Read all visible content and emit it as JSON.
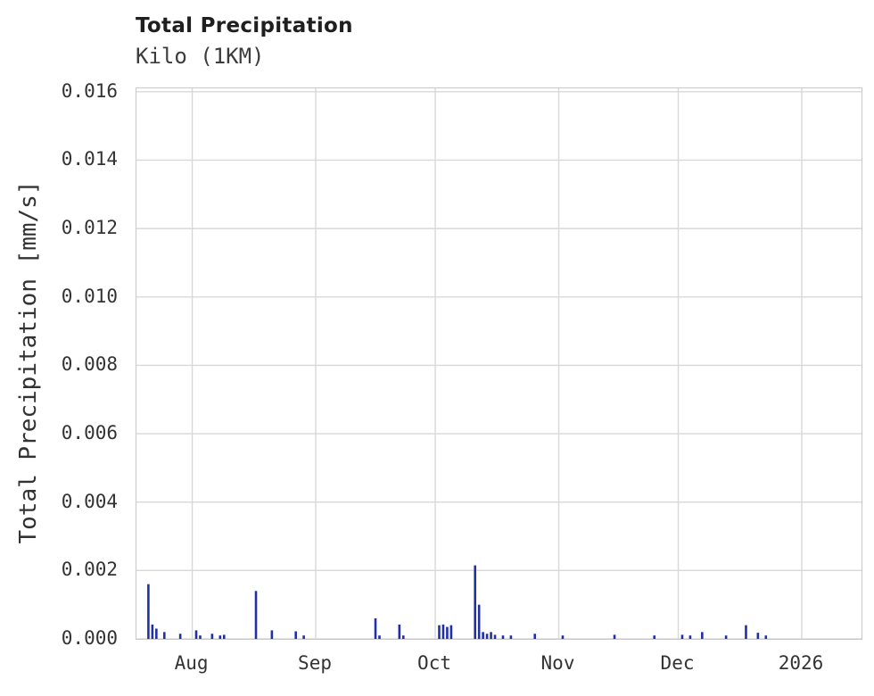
{
  "chart": {
    "title": "Total Precipitation",
    "subtitle": "Kilo (1KM)",
    "ylabel": "Total Precipitation [mm/s]"
  },
  "chart_data": {
    "type": "bar",
    "title": "Total Precipitation",
    "subtitle": "Kilo (1KM)",
    "xlabel": "",
    "ylabel": "Total Precipitation [mm/s]",
    "grid": true,
    "legend": false,
    "bar_color": "#2230a8",
    "grid_color": "#d8d8d8",
    "x_domain": [
      "2025-07-18",
      "2026-01-16"
    ],
    "ylim": [
      0,
      0.0161
    ],
    "y_ticks": [
      0,
      0.002,
      0.004,
      0.006,
      0.008,
      0.01,
      0.012,
      0.014,
      0.016
    ],
    "x_ticks": [
      {
        "label": "Aug",
        "date": "2025-08-01"
      },
      {
        "label": "Sep",
        "date": "2025-09-01"
      },
      {
        "label": "Oct",
        "date": "2025-10-01"
      },
      {
        "label": "Nov",
        "date": "2025-11-01"
      },
      {
        "label": "Dec",
        "date": "2025-12-01"
      },
      {
        "label": "2026",
        "date": "2026-01-01"
      }
    ],
    "points": [
      {
        "date": "2025-07-21",
        "value": 0.0016
      },
      {
        "date": "2025-07-22",
        "value": 0.00042
      },
      {
        "date": "2025-07-23",
        "value": 0.0003
      },
      {
        "date": "2025-07-25",
        "value": 0.0002
      },
      {
        "date": "2025-07-29",
        "value": 0.00015
      },
      {
        "date": "2025-08-02",
        "value": 0.00025
      },
      {
        "date": "2025-08-03",
        "value": 0.0001
      },
      {
        "date": "2025-08-06",
        "value": 0.00015
      },
      {
        "date": "2025-08-08",
        "value": 0.0001
      },
      {
        "date": "2025-08-09",
        "value": 0.00012
      },
      {
        "date": "2025-08-17",
        "value": 0.0014
      },
      {
        "date": "2025-08-21",
        "value": 0.00025
      },
      {
        "date": "2025-08-27",
        "value": 0.00022
      },
      {
        "date": "2025-08-29",
        "value": 0.0001
      },
      {
        "date": "2025-09-16",
        "value": 0.0006
      },
      {
        "date": "2025-09-17",
        "value": 0.0001
      },
      {
        "date": "2025-09-22",
        "value": 0.00042
      },
      {
        "date": "2025-09-23",
        "value": 0.0001
      },
      {
        "date": "2025-10-02",
        "value": 0.0004
      },
      {
        "date": "2025-10-03",
        "value": 0.00042
      },
      {
        "date": "2025-10-04",
        "value": 0.00035
      },
      {
        "date": "2025-10-05",
        "value": 0.0004
      },
      {
        "date": "2025-10-11",
        "value": 0.00215
      },
      {
        "date": "2025-10-12",
        "value": 0.001
      },
      {
        "date": "2025-10-13",
        "value": 0.0002
      },
      {
        "date": "2025-10-14",
        "value": 0.00015
      },
      {
        "date": "2025-10-15",
        "value": 0.0002
      },
      {
        "date": "2025-10-16",
        "value": 0.00012
      },
      {
        "date": "2025-10-18",
        "value": 0.0001
      },
      {
        "date": "2025-10-20",
        "value": 0.0001
      },
      {
        "date": "2025-10-26",
        "value": 0.00015
      },
      {
        "date": "2025-11-02",
        "value": 0.0001
      },
      {
        "date": "2025-11-15",
        "value": 0.00012
      },
      {
        "date": "2025-11-25",
        "value": 0.0001
      },
      {
        "date": "2025-12-02",
        "value": 0.00012
      },
      {
        "date": "2025-12-04",
        "value": 0.0001
      },
      {
        "date": "2025-12-07",
        "value": 0.0002
      },
      {
        "date": "2025-12-13",
        "value": 0.0001
      },
      {
        "date": "2025-12-18",
        "value": 0.0004
      },
      {
        "date": "2025-12-21",
        "value": 0.00018
      },
      {
        "date": "2025-12-23",
        "value": 0.0001
      }
    ]
  }
}
